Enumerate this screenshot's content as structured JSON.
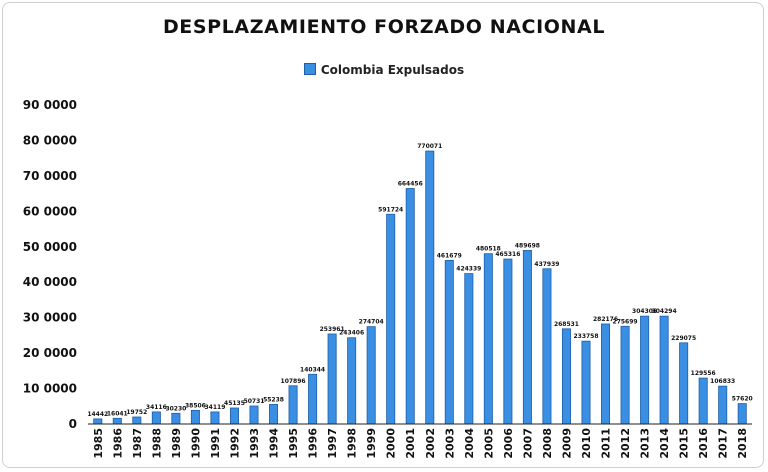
{
  "chart_data": {
    "type": "bar",
    "title": "DESPLAZAMIENTO FORZADO NACIONAL",
    "xlabel": "",
    "ylabel": "",
    "legend": {
      "position": "top",
      "entries": [
        "Colombia Expulsados"
      ]
    },
    "grid": false,
    "ylim": [
      0,
      900000
    ],
    "y_ticks": [
      0,
      100000,
      200000,
      300000,
      400000,
      500000,
      600000,
      700000,
      800000,
      900000
    ],
    "y_tick_labels": [
      "0",
      "10 0000",
      "20 0000",
      "30 0000",
      "40 0000",
      "50 0000",
      "60 0000",
      "70 0000",
      "80 0000",
      "90 0000"
    ],
    "categories": [
      "1985",
      "1986",
      "1987",
      "1988",
      "1989",
      "1990",
      "1991",
      "1992",
      "1993",
      "1994",
      "1995",
      "1996",
      "1997",
      "1998",
      "1999",
      "2000",
      "2001",
      "2002",
      "2003",
      "2004",
      "2005",
      "2006",
      "2007",
      "2008",
      "2009",
      "2010",
      "2011",
      "2012",
      "2013",
      "2014",
      "2015",
      "2016",
      "2017",
      "2018"
    ],
    "series": [
      {
        "name": "Colombia Expulsados",
        "color": "#3b8fe3",
        "values": [
          14442,
          16041,
          19752,
          34116,
          30230,
          38506,
          34119,
          45135,
          50731,
          55238,
          107896,
          140344,
          253961,
          243406,
          274704,
          591724,
          664456,
          770071,
          461679,
          424339,
          480518,
          465316,
          489698,
          437939,
          268531,
          233758,
          282176,
          275699,
          304306,
          304294,
          229075,
          129556,
          106833,
          57620
        ],
        "value_labels": [
          "14442",
          "16041",
          "19752",
          "34116",
          "30230",
          "38506",
          "34119",
          "45135",
          "50731",
          "55238",
          "107896",
          "140344",
          "253961",
          "243406",
          "274704",
          "591724",
          "664456",
          "770071",
          "461679",
          "424339",
          "480518",
          "465316",
          "489698",
          "437939",
          "268531",
          "233758",
          "282176",
          "275699",
          "304306",
          "304294",
          "229075",
          "129556",
          "106833",
          "57620"
        ]
      }
    ]
  }
}
